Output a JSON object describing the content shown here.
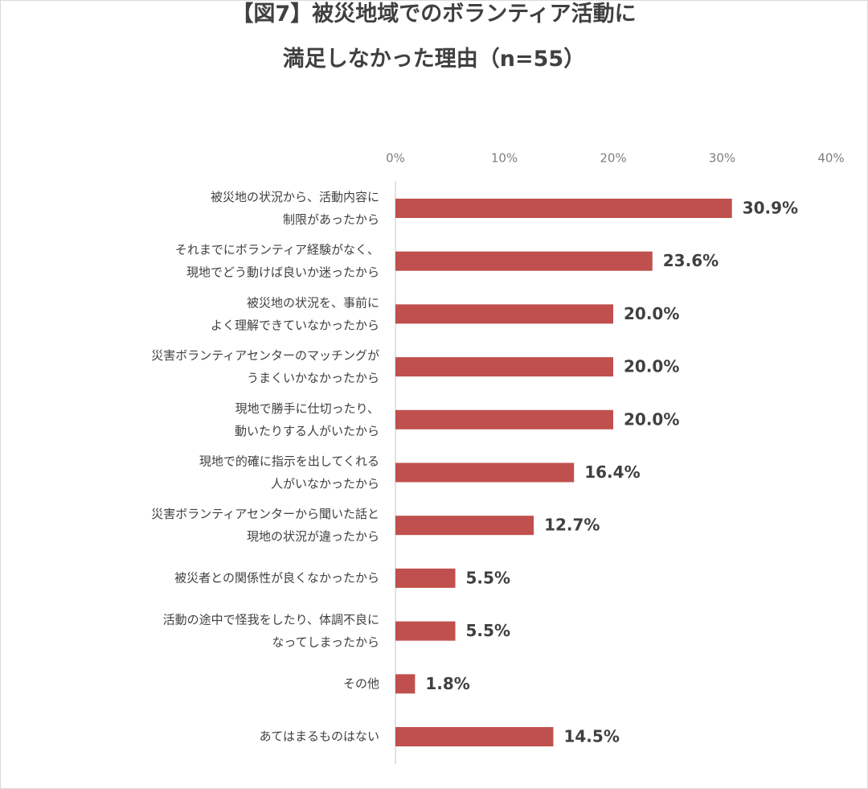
{
  "chart_data": {
    "type": "bar",
    "orientation": "horizontal",
    "title": "【図7】被災地域でのボランティア活動に\n満足しなかった理由（n=55）",
    "categories": [
      "被災地の状況から、活動内容に\n制限があったから",
      "それまでにボランティア経験がなく、\n現地でどう動けば良いか迷ったから",
      "被災地の状況を、事前に\nよく理解できていなかったから",
      "災害ボランティアセンターのマッチングが\nうまくいかなかったから",
      "現地で勝手に仕切ったり、\n動いたりする人がいたから",
      "現地で的確に指示を出してくれる\n人がいなかったから",
      "災害ボランティアセンターから聞いた話と\n現地の状況が違ったから",
      "被災者との関係性が良くなかったから",
      "活動の途中で怪我をしたり、体調不良に\nなってしまったから",
      "その他",
      "あてはまるものはない"
    ],
    "values": [
      30.9,
      23.6,
      20.0,
      20.0,
      20.0,
      16.4,
      12.7,
      5.5,
      5.5,
      1.8,
      14.5
    ],
    "value_labels": [
      "30.9%",
      "23.6%",
      "20.0%",
      "20.0%",
      "20.0%",
      "16.4%",
      "12.7%",
      "5.5%",
      "5.5%",
      "1.8%",
      "14.5%"
    ],
    "color": "#c0504d",
    "xlim": [
      0,
      40
    ],
    "xticks": [
      {
        "value": 0,
        "label": "0%"
      },
      {
        "value": 10,
        "label": "10%"
      },
      {
        "value": 20,
        "label": "20%"
      },
      {
        "value": 30,
        "label": "30%"
      },
      {
        "value": 40,
        "label": "40%"
      }
    ],
    "grid": false
  }
}
